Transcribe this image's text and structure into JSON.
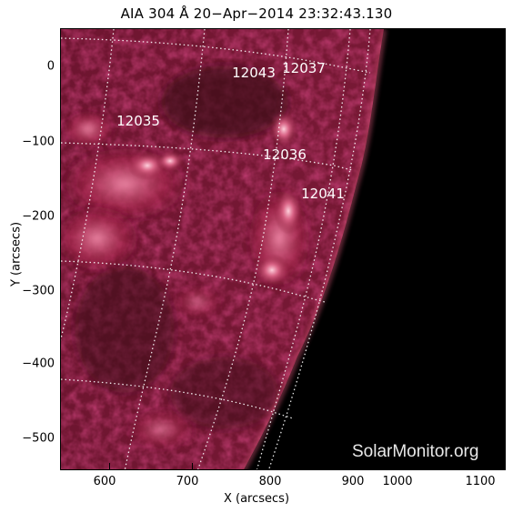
{
  "title": "AIA 304 Å 20−Apr−2014 23:32:43.130",
  "axes": {
    "xlabel": "X (arcsecs)",
    "ylabel": "Y (arcsecs)",
    "x_ticks": [
      "600",
      "700",
      "800",
      "900",
      "1000",
      "1100"
    ],
    "y_ticks": [
      "0",
      "−100",
      "−200",
      "−300",
      "−400",
      "−500"
    ]
  },
  "active_regions": [
    {
      "number": "12035"
    },
    {
      "number": "12043"
    },
    {
      "number": "12037"
    },
    {
      "number": "12036"
    },
    {
      "number": "12041"
    }
  ],
  "watermark": "SolarMonitor.org",
  "colors": {
    "background": "#000000",
    "emission_hot": "#f2a0b8",
    "emission_mid": "#b0284e",
    "emission_dim": "#5a0f22",
    "grid": "#ffffff"
  }
}
